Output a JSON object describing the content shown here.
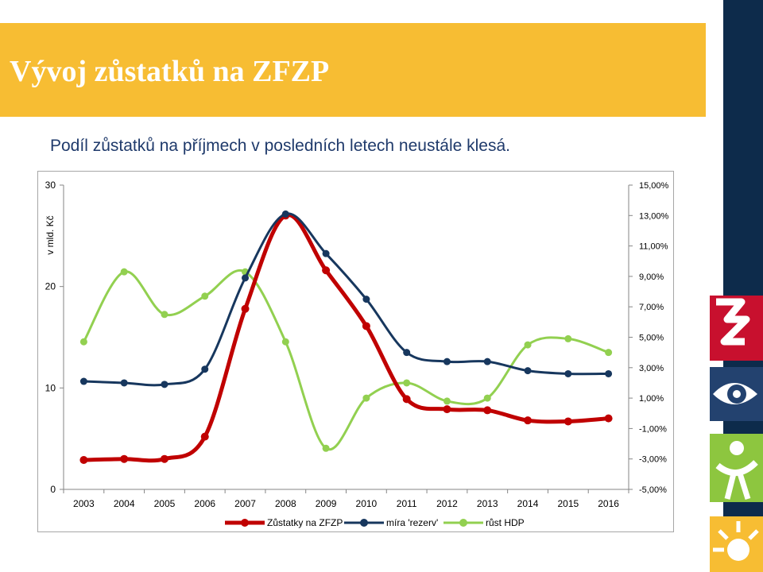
{
  "slide": {
    "title": "Vývoj zůstatků na ZFZP",
    "subtitle": "Podíl zůstatků na příjmech v posledních letech neustále klesá."
  },
  "colors": {
    "title_band": "#f7bd33",
    "title_text": "#ffffff",
    "subtitle_text": "#1f3a6b",
    "side_bar": "#0d2b4b"
  },
  "chart_data": {
    "type": "line",
    "ylabel": "v mld. Kč",
    "categories": [
      "2003",
      "2004",
      "2005",
      "2006",
      "2007",
      "2008",
      "2009",
      "2010",
      "2011",
      "2012",
      "2013",
      "2014",
      "2015",
      "2016"
    ],
    "y_left": {
      "min": 0,
      "max": 30,
      "ticks": [
        "0",
        "10",
        "20",
        "30"
      ]
    },
    "y_right": {
      "min": -5,
      "max": 15,
      "ticks": [
        "-5,00%",
        "-3,00%",
        "-1,00%",
        "1,00%",
        "3,00%",
        "5,00%",
        "7,00%",
        "9,00%",
        "11,00%",
        "13,00%",
        "15,00%"
      ]
    },
    "grid": false,
    "legend": "bottom",
    "smooth": true,
    "series": [
      {
        "name": "Zůstatky na ZFZP",
        "axis": "left",
        "color": "#c00000",
        "width": 5,
        "values": [
          2.9,
          3.0,
          3.0,
          5.2,
          17.8,
          27.0,
          21.6,
          16.1,
          8.9,
          7.9,
          7.8,
          6.8,
          6.7,
          7.0
        ]
      },
      {
        "name": "míra 'rezerv'",
        "axis": "right",
        "color": "#17375e",
        "width": 3,
        "values": [
          2.1,
          2.0,
          1.9,
          2.9,
          8.9,
          13.1,
          10.5,
          7.5,
          4.0,
          3.4,
          3.4,
          2.8,
          2.6,
          2.6
        ]
      },
      {
        "name": "růst HDP",
        "axis": "right",
        "color": "#92d050",
        "width": 3,
        "values": [
          4.7,
          9.3,
          6.5,
          7.7,
          9.3,
          4.7,
          -2.3,
          1.0,
          2.0,
          0.8,
          1.0,
          4.5,
          4.9,
          4.0
        ]
      }
    ]
  }
}
